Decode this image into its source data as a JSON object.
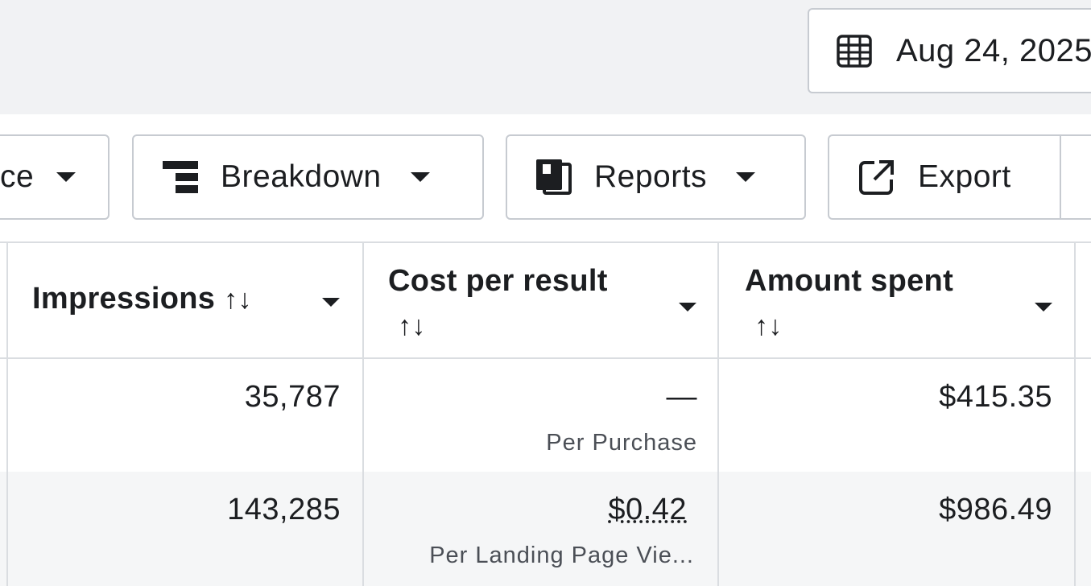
{
  "date_picker": {
    "label": "Aug 24, 2025",
    "icon": "calendar-icon"
  },
  "toolbar": {
    "partial_label": "ce",
    "breakdown_label": "Breakdown",
    "reports_label": "Reports",
    "export_label": "Export"
  },
  "table": {
    "columns": [
      {
        "label": "Impressions",
        "sort_glyph": "↑↓"
      },
      {
        "label": "Cost per result",
        "sort_glyph": "↑↓"
      },
      {
        "label": "Amount spent",
        "sort_glyph": "↑↓"
      }
    ],
    "rows": [
      {
        "impressions": "35,787",
        "cost_per_result": "—",
        "cost_sub": "Per Purchase",
        "amount_spent": "$415.35"
      },
      {
        "impressions": "143,285",
        "cost_per_result": "$0.42",
        "cost_sub": "Per Landing Page Vie...",
        "amount_spent": "$986.49"
      }
    ]
  }
}
